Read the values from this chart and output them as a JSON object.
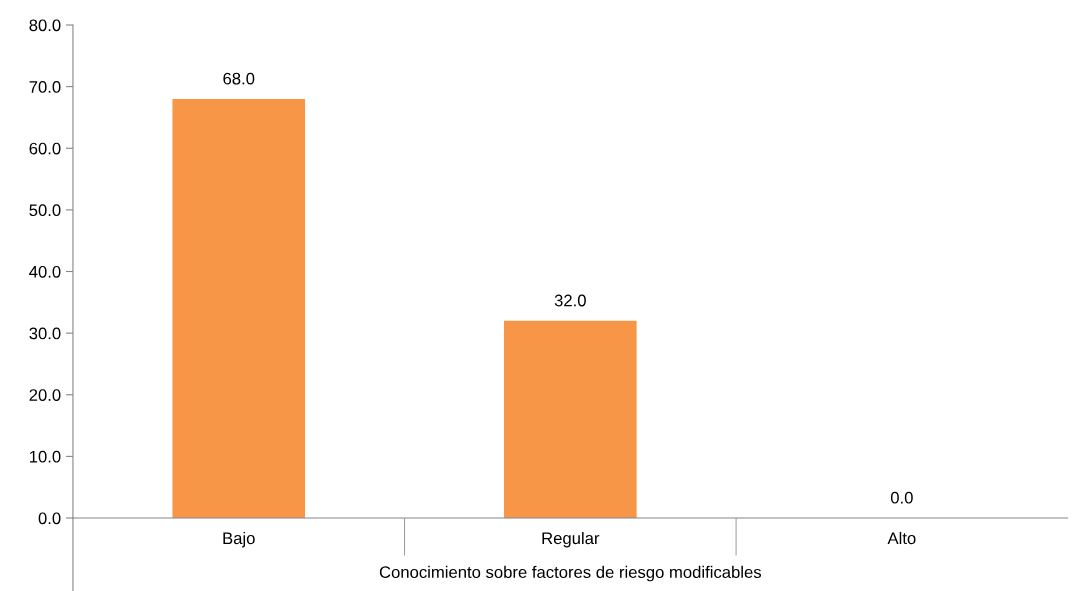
{
  "chart_data": {
    "type": "bar",
    "xlabel": "Conocimiento sobre factores de riesgo modificables",
    "categories": [
      "Bajo",
      "Regular",
      "Alto"
    ],
    "values": [
      68.0,
      32.0,
      0.0
    ],
    "value_labels": [
      "68.0",
      "32.0",
      "0.0"
    ],
    "color": "#f79646",
    "ylim": [
      0,
      80
    ],
    "yticks": [
      {
        "value": 0,
        "label": "0.0"
      },
      {
        "value": 10,
        "label": "10.0"
      },
      {
        "value": 20,
        "label": "20.0"
      },
      {
        "value": 30,
        "label": "30.0"
      },
      {
        "value": 40,
        "label": "40.0"
      },
      {
        "value": 50,
        "label": "50.0"
      },
      {
        "value": 60,
        "label": "60.0"
      },
      {
        "value": 70,
        "label": "70.0"
      },
      {
        "value": 80,
        "label": "80.0"
      }
    ],
    "grid": false,
    "legend": false
  }
}
